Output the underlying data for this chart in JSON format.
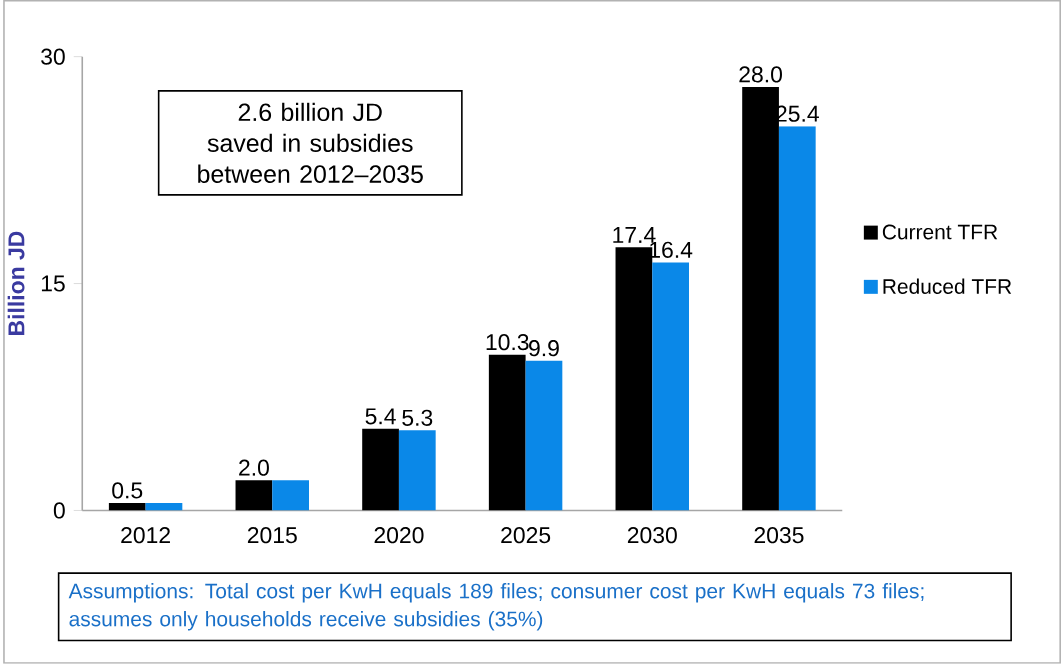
{
  "chart_data": {
    "type": "bar",
    "ylabel": "Billion JD",
    "categories": [
      "2012",
      "2015",
      "2020",
      "2025",
      "2030",
      "2035"
    ],
    "series": [
      {
        "name": "Current TFR",
        "color": "#000000",
        "values": [
          0.5,
          2.0,
          5.4,
          10.3,
          17.4,
          28.0
        ],
        "value_labels": [
          "0.5",
          "2.0",
          "5.4",
          "10.3",
          "17.4",
          "28.0"
        ]
      },
      {
        "name": "Reduced TFR",
        "color": "#0a88e8",
        "values": [
          0.5,
          2.0,
          5.3,
          9.9,
          16.4,
          25.4
        ],
        "value_labels": [
          null,
          null,
          "5.3",
          "9.9",
          "16.4",
          "25.4"
        ]
      }
    ],
    "ylim": [
      0,
      30
    ],
    "yticks": [
      0,
      15,
      30
    ],
    "grid": false,
    "legend": "right",
    "annotations": [
      "2.6 billion JD saved in subsidies between 2012–2035",
      "Assumptions: Total cost per KwH equals 189 files; consumer cost per KwH equals 73 files; assumes only households receive subsidies (35%)"
    ]
  }
}
